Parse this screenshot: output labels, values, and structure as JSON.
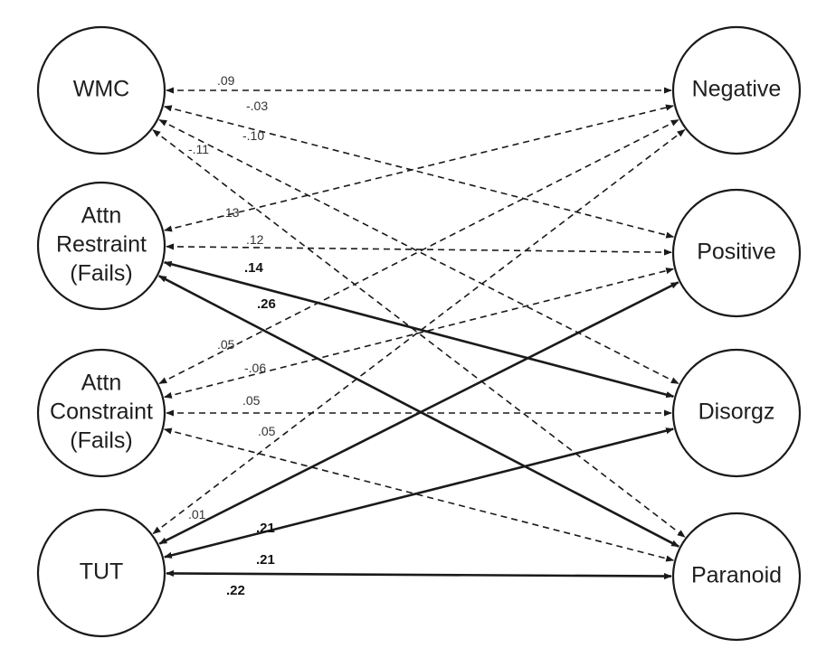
{
  "nodes": {
    "wmc": {
      "lines": [
        "WMC"
      ]
    },
    "attn_restraint": {
      "lines": [
        "Attn",
        "Restraint",
        "(Fails)"
      ]
    },
    "attn_constraint": {
      "lines": [
        "Attn",
        "Constraint",
        "(Fails)"
      ]
    },
    "tut": {
      "lines": [
        "TUT"
      ]
    },
    "negative": {
      "lines": [
        "Negative"
      ]
    },
    "positive": {
      "lines": [
        "Positive"
      ]
    },
    "disorgz": {
      "lines": [
        "Disorgz"
      ]
    },
    "paranoid": {
      "lines": [
        "Paranoid"
      ]
    }
  },
  "edges": [
    {
      "from": "wmc",
      "to": "negative",
      "coef": ".09",
      "significant": false
    },
    {
      "from": "wmc",
      "to": "positive",
      "coef": "-.03",
      "significant": false
    },
    {
      "from": "wmc",
      "to": "disorgz",
      "coef": "-.10",
      "significant": false
    },
    {
      "from": "wmc",
      "to": "paranoid",
      "coef": "-.11",
      "significant": false
    },
    {
      "from": "attn_restraint",
      "to": "negative",
      "coef": ".13",
      "significant": false
    },
    {
      "from": "attn_restraint",
      "to": "positive",
      "coef": ".12",
      "significant": false
    },
    {
      "from": "attn_restraint",
      "to": "disorgz",
      "coef": ".14",
      "significant": true
    },
    {
      "from": "attn_restraint",
      "to": "paranoid",
      "coef": ".26",
      "significant": true
    },
    {
      "from": "attn_constraint",
      "to": "negative",
      "coef": ".05",
      "significant": false
    },
    {
      "from": "attn_constraint",
      "to": "positive",
      "coef": "-.06",
      "significant": false
    },
    {
      "from": "attn_constraint",
      "to": "disorgz",
      "coef": ".05",
      "significant": false
    },
    {
      "from": "attn_constraint",
      "to": "paranoid",
      "coef": ".05",
      "significant": false
    },
    {
      "from": "tut",
      "to": "negative",
      "coef": ".01",
      "significant": false
    },
    {
      "from": "tut",
      "to": "positive",
      "coef": ".21",
      "significant": true
    },
    {
      "from": "tut",
      "to": "disorgz",
      "coef": ".21",
      "significant": true
    },
    {
      "from": "tut",
      "to": "paranoid",
      "coef": ".22",
      "significant": true
    }
  ]
}
